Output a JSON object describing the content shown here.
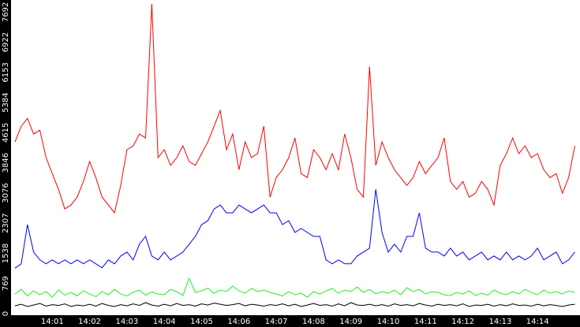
{
  "chart_data": {
    "type": "line",
    "categories": [
      null,
      null,
      null,
      null,
      null,
      null,
      "14:01",
      null,
      null,
      null,
      null,
      null,
      "14:02",
      null,
      null,
      null,
      null,
      null,
      "14:03",
      null,
      null,
      null,
      null,
      null,
      "14:04",
      null,
      null,
      null,
      null,
      null,
      "14:05",
      null,
      null,
      null,
      null,
      null,
      "14:06",
      null,
      null,
      null,
      null,
      null,
      "14:07",
      null,
      null,
      null,
      null,
      null,
      "14:08",
      null,
      null,
      null,
      null,
      null,
      "14:09",
      null,
      null,
      null,
      null,
      null,
      "14:10",
      null,
      null,
      null,
      null,
      null,
      "14:11",
      null,
      null,
      null,
      null,
      null,
      "14:12",
      null,
      null,
      null,
      null,
      null,
      "14:13",
      null,
      null,
      null,
      null,
      null,
      "14:14",
      null,
      null,
      null,
      null,
      null,
      null
    ],
    "ylim": [
      0,
      8000
    ],
    "yticks": [
      0,
      769,
      1538,
      2307,
      3076,
      3846,
      4615,
      5384,
      6153,
      6922,
      7692
    ],
    "grid": false,
    "series": [
      {
        "color": "#ff0000",
        "values": [
          4380,
          4780,
          4980,
          4580,
          4680,
          3980,
          3570,
          3170,
          2670,
          2770,
          2970,
          3370,
          3880,
          3470,
          2970,
          2770,
          2570,
          3270,
          4180,
          4280,
          4580,
          4480,
          7900,
          3980,
          4180,
          3780,
          3980,
          4280,
          3880,
          3780,
          4080,
          4380,
          4780,
          5180,
          4180,
          4580,
          3670,
          4380,
          3980,
          4080,
          4780,
          2970,
          3470,
          3670,
          3980,
          4480,
          3570,
          3470,
          4180,
          3980,
          3670,
          4080,
          3670,
          4580,
          3980,
          3170,
          2970,
          6300,
          3780,
          4380,
          3980,
          3670,
          3470,
          3270,
          3470,
          3880,
          3570,
          3780,
          3980,
          4480,
          3370,
          3170,
          3370,
          2970,
          3070,
          3370,
          3170,
          2770,
          3780,
          4080,
          4480,
          4080,
          4280,
          3980,
          4080,
          3670,
          3470,
          3570,
          3070,
          3470,
          4280
        ]
      },
      {
        "color": "#0000ff",
        "values": [
          1160,
          1270,
          2270,
          1570,
          1370,
          1270,
          1370,
          1270,
          1370,
          1270,
          1370,
          1270,
          1370,
          1270,
          1170,
          1370,
          1270,
          1470,
          1570,
          1370,
          1770,
          1970,
          1470,
          1370,
          1570,
          1370,
          1470,
          1570,
          1770,
          1970,
          2270,
          2370,
          2670,
          2770,
          2570,
          2570,
          2770,
          2670,
          2570,
          2670,
          2770,
          2570,
          2570,
          2270,
          2370,
          2070,
          2170,
          2070,
          1970,
          1970,
          1370,
          1270,
          1370,
          1270,
          1270,
          1470,
          1570,
          1670,
          3170,
          2070,
          1570,
          1770,
          1570,
          1970,
          1970,
          2570,
          1670,
          1570,
          1570,
          1470,
          1670,
          1470,
          1570,
          1370,
          1470,
          1570,
          1370,
          1470,
          1370,
          1570,
          1370,
          1470,
          1370,
          1470,
          1670,
          1370,
          1470,
          1570,
          1270,
          1370,
          1570
        ]
      },
      {
        "color": "#22ee22",
        "values": [
          500,
          620,
          450,
          580,
          480,
          560,
          420,
          600,
          470,
          540,
          450,
          580,
          500,
          430,
          560,
          480,
          620,
          500,
          450,
          540,
          600,
          470,
          550,
          500,
          480,
          620,
          560,
          460,
          900,
          540,
          580,
          650,
          520,
          600,
          560,
          700,
          580,
          520,
          640,
          560,
          600,
          540,
          500,
          450,
          560,
          480,
          520,
          420,
          560,
          500,
          580,
          640,
          520,
          600,
          560,
          680,
          540,
          620,
          500,
          560,
          520,
          600,
          480,
          660,
          560,
          620,
          500,
          560,
          540,
          480,
          460,
          540,
          500,
          580,
          460,
          520,
          470,
          600,
          520,
          480,
          560,
          500,
          620,
          540,
          480,
          600,
          520,
          560,
          500,
          580,
          540
        ]
      },
      {
        "color": "#000000",
        "values": [
          200,
          240,
          180,
          220,
          260,
          190,
          230,
          210,
          250,
          180,
          220,
          200,
          240,
          190,
          260,
          210,
          180,
          230,
          200,
          250,
          210,
          280,
          220,
          190,
          240,
          200,
          260,
          210,
          230,
          190,
          250,
          220,
          270,
          240,
          210,
          230,
          260,
          200,
          240,
          220,
          190,
          230,
          210,
          250,
          200,
          240,
          180,
          220,
          260,
          210,
          230,
          190,
          250,
          200,
          280,
          220,
          210,
          240,
          200,
          230,
          190,
          250,
          210,
          230,
          200,
          260,
          220,
          190,
          240,
          210,
          230,
          200,
          250,
          180,
          220,
          210,
          240,
          190,
          230,
          200,
          250,
          210,
          220,
          190,
          240,
          200,
          230,
          210,
          180,
          220,
          240
        ]
      }
    ]
  }
}
